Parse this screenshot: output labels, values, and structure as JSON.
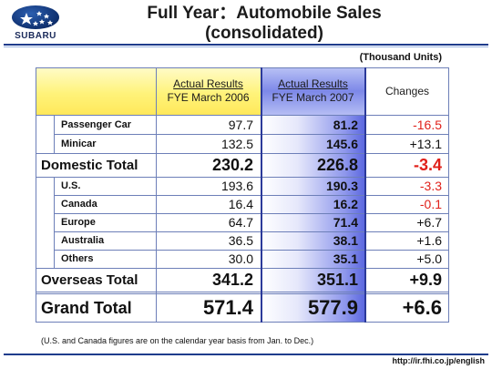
{
  "brand": {
    "name": "SUBARU"
  },
  "title": {
    "line1": "Full Year：Automobile Sales",
    "line2": "(consolidated)"
  },
  "units": "(Thousand Units)",
  "columns": {
    "col1": {
      "line1": "Actual Results",
      "line2": "FYE March 2006"
    },
    "col2": {
      "line1": "Actual Results",
      "line2": "FYE March 2007"
    },
    "col3": {
      "line1": "Changes"
    }
  },
  "rows": {
    "passenger_car": {
      "label": "Passenger Car",
      "fy2006": "97.7",
      "fy2007": "81.2",
      "change": "-16.5"
    },
    "minicar": {
      "label": "Minicar",
      "fy2006": "132.5",
      "fy2007": "145.6",
      "change": "+13.1"
    },
    "domestic_total": {
      "label": "Domestic Total",
      "fy2006": "230.2",
      "fy2007": "226.8",
      "change": "-3.4"
    },
    "us": {
      "label": "U.S.",
      "fy2006": "193.6",
      "fy2007": "190.3",
      "change": "-3.3"
    },
    "canada": {
      "label": "Canada",
      "fy2006": "16.4",
      "fy2007": "16.2",
      "change": "-0.1"
    },
    "europe": {
      "label": "Europe",
      "fy2006": "64.7",
      "fy2007": "71.4",
      "change": "+6.7"
    },
    "australia": {
      "label": "Australia",
      "fy2006": "36.5",
      "fy2007": "38.1",
      "change": "+1.6"
    },
    "others": {
      "label": "Others",
      "fy2006": "30.0",
      "fy2007": "35.1",
      "change": "+5.0"
    },
    "overseas_total": {
      "label": "Overseas Total",
      "fy2006": "341.2",
      "fy2007": "351.1",
      "change": "+9.9"
    },
    "grand_total": {
      "label": "Grand Total",
      "fy2006": "571.4",
      "fy2007": "577.9",
      "change": "+6.6"
    }
  },
  "colors": {
    "negative": "#e0201a",
    "header_yellow": "#fff37a",
    "header_blue": "#7d88e8",
    "rule": "#1e3c8c"
  },
  "footnote": "(U.S. and Canada figures are on the calendar year basis from Jan. to Dec.)",
  "url": "http://ir.fhi.co.jp/english"
}
